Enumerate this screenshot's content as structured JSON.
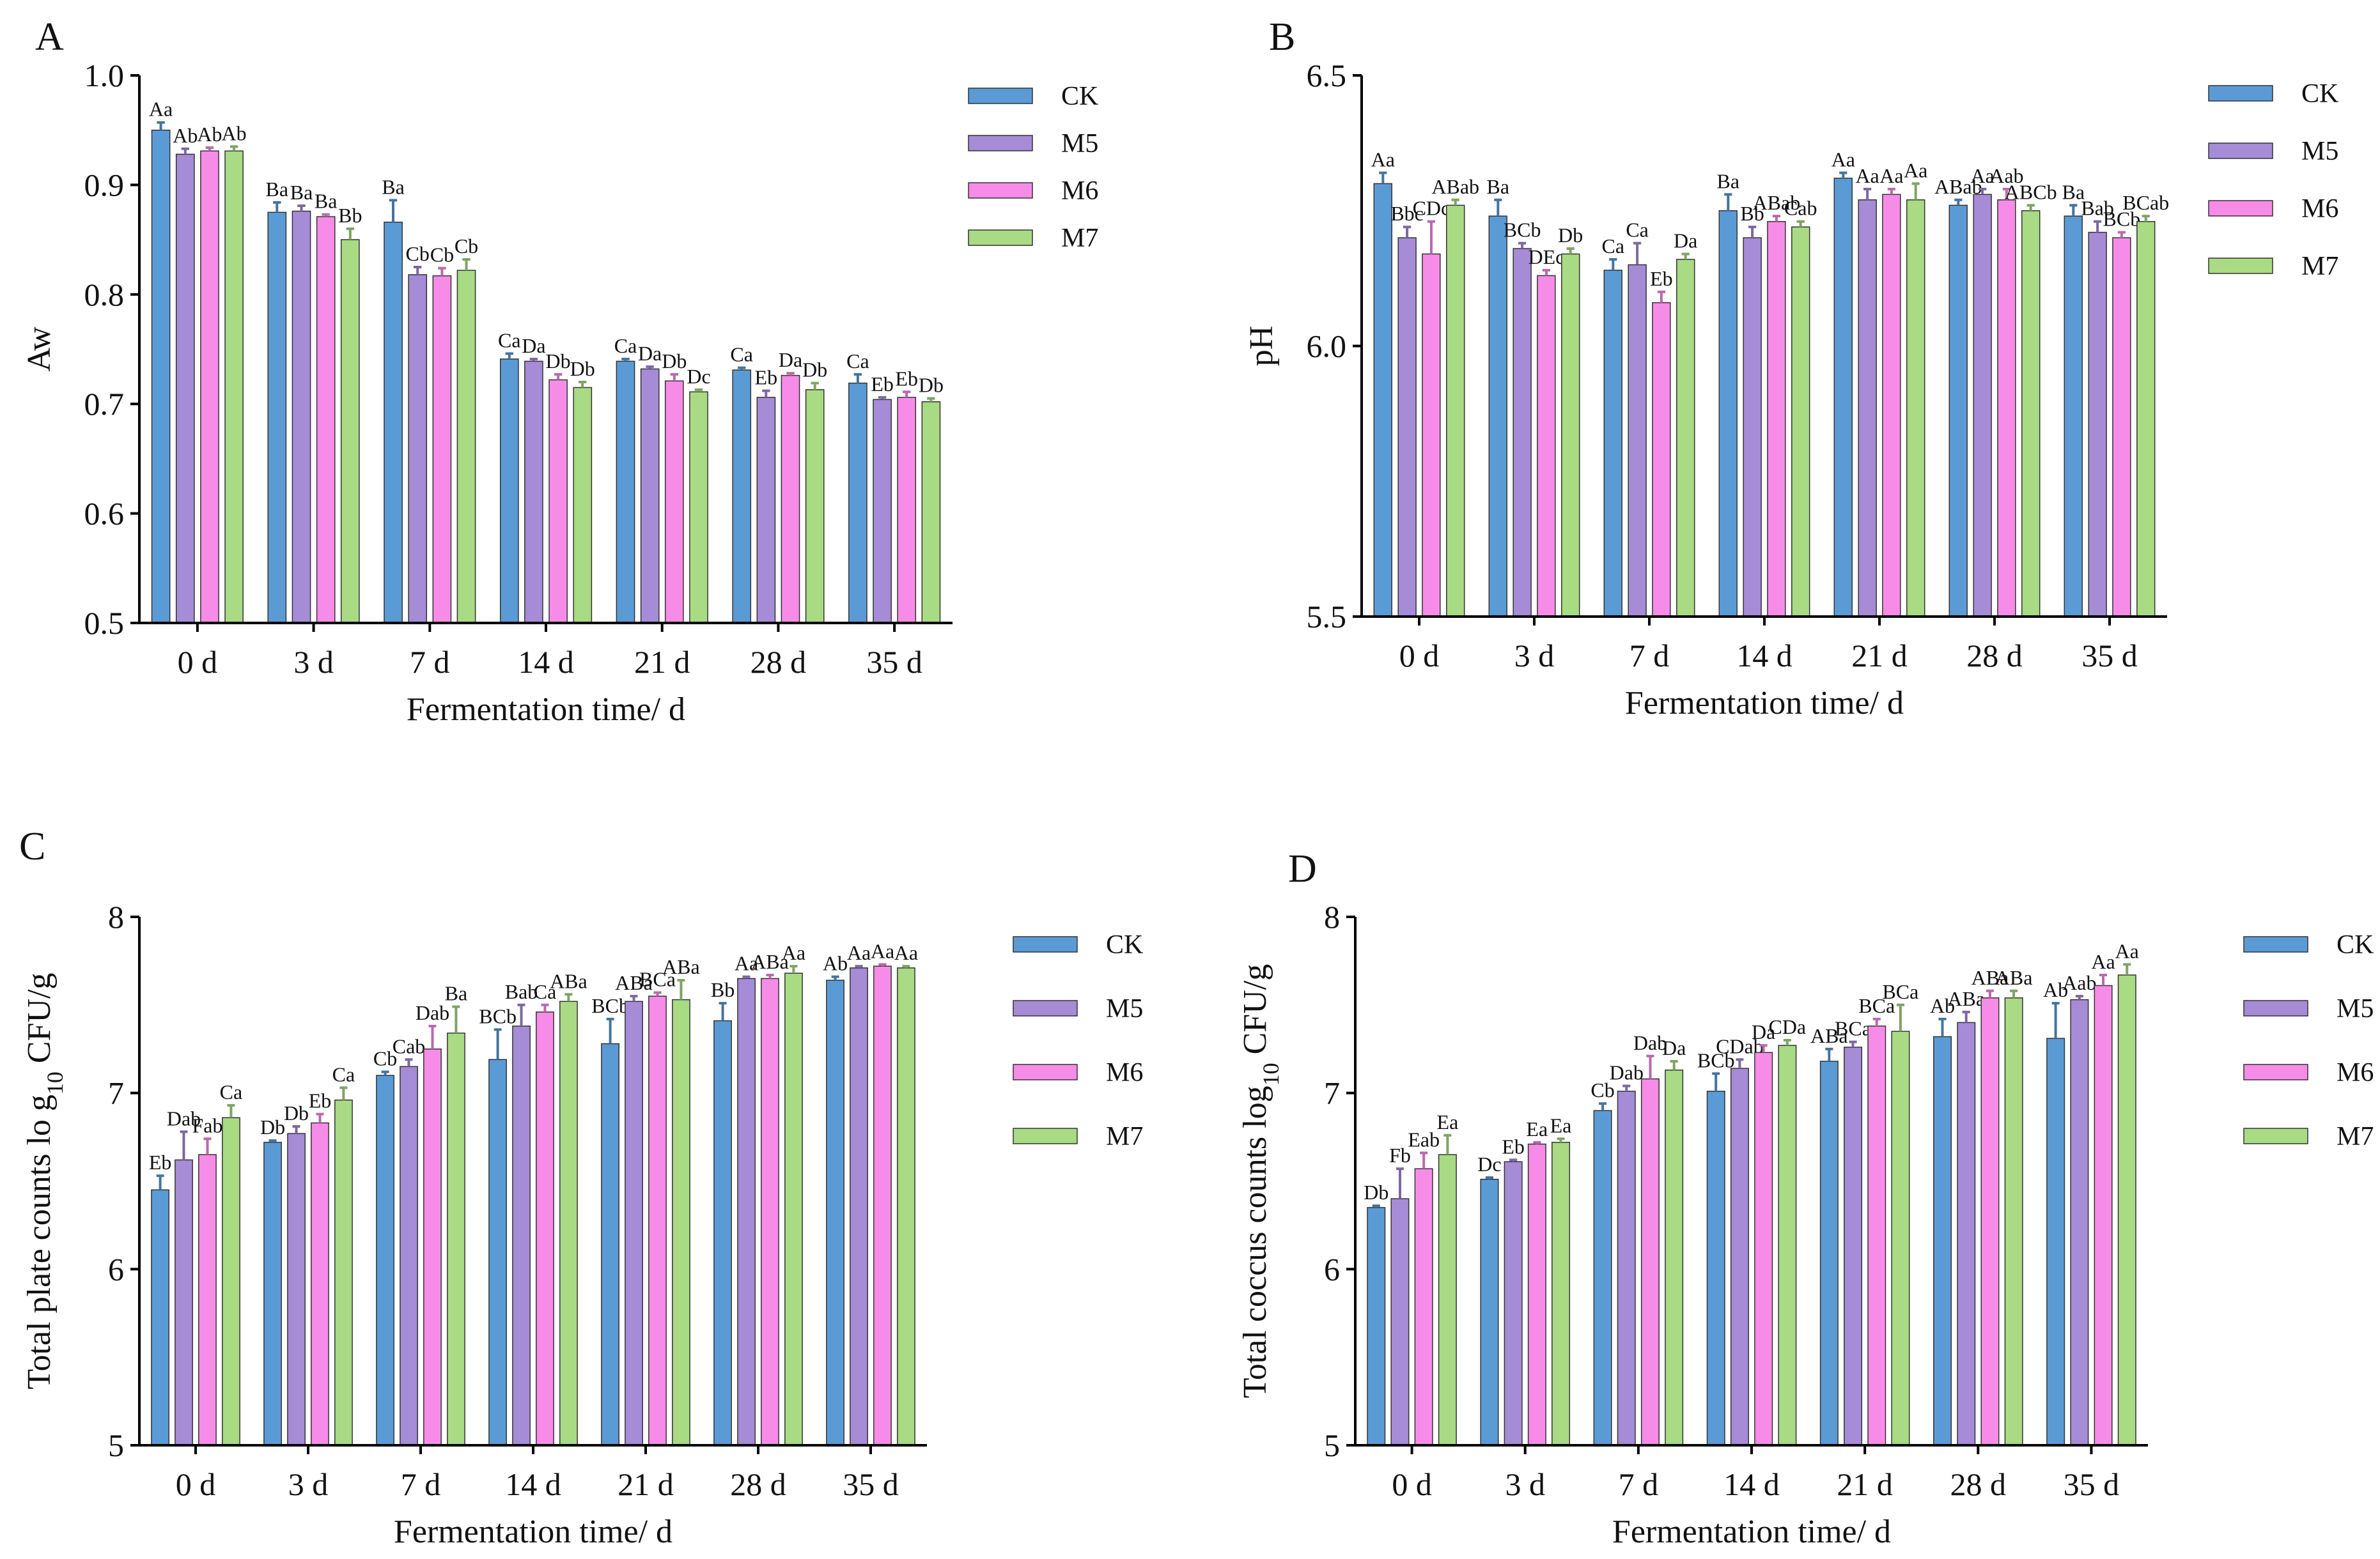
{
  "chart_data": [
    {
      "panel": "A",
      "type": "bar",
      "title": "",
      "xlabel": "Fermentation time/ d",
      "ylabel": "Aw",
      "ylim": [
        0.5,
        1.0
      ],
      "yticks": [
        "0.5",
        "0.6",
        "0.7",
        "0.8",
        "0.9",
        "1.0"
      ],
      "categories": [
        "0 d",
        "3 d",
        "7 d",
        "14 d",
        "21 d",
        "28 d",
        "35 d"
      ],
      "legend_position": "right",
      "series": [
        {
          "name": "CK",
          "color": "#5B9BD5",
          "values": [
            0.95,
            0.875,
            0.866,
            0.741,
            0.739,
            0.731,
            0.719
          ],
          "errors": [
            0.007,
            0.009,
            0.02,
            0.005,
            0.002,
            0.002,
            0.008
          ],
          "labels": [
            "Aa",
            "Ba",
            "Ba",
            "Ca",
            "Ca",
            "Ca",
            "Ca"
          ]
        },
        {
          "name": "M5",
          "color": "#A68BD7",
          "values": [
            0.928,
            0.876,
            0.818,
            0.739,
            0.732,
            0.706,
            0.704
          ],
          "errors": [
            0.005,
            0.005,
            0.007,
            0.002,
            0.002,
            0.006,
            0.002
          ],
          "labels": [
            "Ab",
            "Ba",
            "Cb",
            "Da",
            "Da",
            "Eb",
            "Eb"
          ]
        },
        {
          "name": "M6",
          "color": "#F78CE8",
          "values": [
            0.931,
            0.871,
            0.817,
            0.722,
            0.721,
            0.726,
            0.706
          ],
          "errors": [
            0.003,
            0.002,
            0.007,
            0.005,
            0.006,
            0.002,
            0.005
          ],
          "labels": [
            "Ab",
            "Ba",
            "Cb",
            "Db",
            "Db",
            "Da",
            "Eb"
          ]
        },
        {
          "name": "M7",
          "color": "#A9DA84",
          "values": [
            0.931,
            0.85,
            0.822,
            0.715,
            0.711,
            0.713,
            0.702
          ],
          "errors": [
            0.004,
            0.01,
            0.01,
            0.005,
            0.002,
            0.006,
            0.003
          ],
          "labels": [
            "Ab",
            "Bb",
            "Cb",
            "Db",
            "Dc",
            "Db",
            "Db"
          ]
        }
      ]
    },
    {
      "panel": "B",
      "type": "bar",
      "title": "",
      "xlabel": "Fermentation time/ d",
      "ylabel": "pH",
      "ylim": [
        5.5,
        6.5
      ],
      "yticks": [
        "5.5",
        "6.0",
        "6.5"
      ],
      "categories": [
        "0 d",
        "3 d",
        "7 d",
        "14 d",
        "21 d",
        "28 d",
        "35 d"
      ],
      "legend_position": "right",
      "series": [
        {
          "name": "CK",
          "color": "#5B9BD5",
          "values": [
            6.3,
            6.24,
            6.14,
            6.25,
            6.31,
            6.26,
            6.24
          ],
          "errors": [
            0.02,
            0.03,
            0.02,
            0.03,
            0.01,
            0.01,
            0.02
          ],
          "labels": [
            "Aa",
            "Ba",
            "Ca",
            "Ba",
            "Aa",
            "ABab",
            "Ba"
          ]
        },
        {
          "name": "M5",
          "color": "#A68BD7",
          "values": [
            6.2,
            6.18,
            6.15,
            6.2,
            6.27,
            6.28,
            6.21
          ],
          "errors": [
            0.02,
            0.01,
            0.04,
            0.02,
            0.02,
            0.01,
            0.02
          ],
          "labels": [
            "Bbc",
            "BCb",
            "Ca",
            "Bb",
            "Aa",
            "Aa",
            "Bab"
          ]
        },
        {
          "name": "M6",
          "color": "#F78CE8",
          "values": [
            6.17,
            6.13,
            6.08,
            6.23,
            6.28,
            6.27,
            6.2
          ],
          "errors": [
            0.06,
            0.01,
            0.02,
            0.01,
            0.01,
            0.02,
            0.01
          ],
          "labels": [
            "CDc",
            "DEc",
            "Eb",
            "ABab",
            "Aa",
            "Aab",
            "BCb"
          ]
        },
        {
          "name": "M7",
          "color": "#A9DA84",
          "values": [
            6.26,
            6.17,
            6.16,
            6.22,
            6.27,
            6.25,
            6.23
          ],
          "errors": [
            0.01,
            0.01,
            0.01,
            0.01,
            0.03,
            0.01,
            0.01
          ],
          "labels": [
            "ABab",
            "Db",
            "Da",
            "Cab",
            "Aa",
            "ABCb",
            "BCab"
          ]
        }
      ]
    },
    {
      "panel": "C",
      "type": "bar",
      "title": "",
      "xlabel": "Fermentation time/ d",
      "ylabel": "Total plate counts lo g10 CFU/g",
      "ylabel_parts": [
        "Total plate counts lo g",
        "10",
        " CFU/g"
      ],
      "ylim": [
        5,
        8
      ],
      "yticks": [
        "5",
        "6",
        "7",
        "8"
      ],
      "categories": [
        "0 d",
        "3 d",
        "7 d",
        "14 d",
        "21 d",
        "28 d",
        "35 d"
      ],
      "legend_position": "right",
      "series": [
        {
          "name": "CK",
          "color": "#5B9BD5",
          "values": [
            6.45,
            6.72,
            7.1,
            7.19,
            7.28,
            7.41,
            7.64
          ],
          "errors": [
            0.08,
            0.01,
            0.02,
            0.17,
            0.14,
            0.1,
            0.02
          ],
          "labels": [
            "Eb",
            "Db",
            "Cb",
            "BCb",
            "BCb",
            "Bb",
            "Ab"
          ]
        },
        {
          "name": "M5",
          "color": "#A68BD7",
          "values": [
            6.62,
            6.77,
            7.15,
            7.38,
            7.52,
            7.65,
            7.71
          ],
          "errors": [
            0.16,
            0.04,
            0.04,
            0.12,
            0.03,
            0.01,
            0.01
          ],
          "labels": [
            "Dab",
            "Db",
            "Cab",
            "Bab",
            "ABa",
            "Aa",
            "Aa"
          ]
        },
        {
          "name": "M6",
          "color": "#F78CE8",
          "values": [
            6.65,
            6.83,
            7.25,
            7.46,
            7.55,
            7.65,
            7.72
          ],
          "errors": [
            0.09,
            0.05,
            0.13,
            0.04,
            0.02,
            0.02,
            0.01
          ],
          "labels": [
            "Fab",
            "Eb",
            "Dab",
            "Ca",
            "BCa",
            "ABa",
            "Aa"
          ]
        },
        {
          "name": "M7",
          "color": "#A9DA84",
          "values": [
            6.86,
            6.96,
            7.34,
            7.52,
            7.53,
            7.68,
            7.71
          ],
          "errors": [
            0.07,
            0.07,
            0.15,
            0.04,
            0.11,
            0.04,
            0.01
          ],
          "labels": [
            "Ca",
            "Ca",
            "Ba",
            "ABa",
            "ABa",
            "Aa",
            "Aa"
          ]
        }
      ]
    },
    {
      "panel": "D",
      "type": "bar",
      "title": "",
      "xlabel": "Fermentation time/ d",
      "ylabel": "Total coccus counts log10 CFU/g",
      "ylabel_parts": [
        "Total coccus counts log",
        "10",
        " CFU/g"
      ],
      "ylim": [
        5,
        8
      ],
      "yticks": [
        "5",
        "6",
        "7",
        "8"
      ],
      "categories": [
        "0 d",
        "3 d",
        "7 d",
        "14 d",
        "21 d",
        "28 d",
        "35 d"
      ],
      "legend_position": "right",
      "series": [
        {
          "name": "CK",
          "color": "#5B9BD5",
          "values": [
            6.35,
            6.51,
            6.9,
            7.01,
            7.18,
            7.32,
            7.31
          ],
          "errors": [
            0.01,
            0.01,
            0.04,
            0.1,
            0.07,
            0.1,
            0.2
          ],
          "labels": [
            "Db",
            "Dc",
            "Cb",
            "BCb",
            "ABa",
            "Ab",
            "Ab"
          ]
        },
        {
          "name": "M5",
          "color": "#A68BD7",
          "values": [
            6.4,
            6.61,
            7.01,
            7.14,
            7.26,
            7.4,
            7.53
          ],
          "errors": [
            0.17,
            0.01,
            0.03,
            0.05,
            0.03,
            0.06,
            0.02
          ],
          "labels": [
            "Fb",
            "Eb",
            "Dab",
            "CDab",
            "BCa",
            "ABa",
            "Aab"
          ]
        },
        {
          "name": "M6",
          "color": "#F78CE8",
          "values": [
            6.57,
            6.71,
            7.08,
            7.23,
            7.38,
            7.54,
            7.61
          ],
          "errors": [
            0.09,
            0.01,
            0.13,
            0.04,
            0.04,
            0.04,
            0.06
          ],
          "labels": [
            "Eab",
            "Ea",
            "Dab",
            "Da",
            "BCa",
            "ABa",
            "Aa"
          ]
        },
        {
          "name": "M7",
          "color": "#A9DA84",
          "values": [
            6.65,
            6.72,
            7.13,
            7.27,
            7.35,
            7.54,
            7.67
          ],
          "errors": [
            0.11,
            0.02,
            0.05,
            0.03,
            0.15,
            0.04,
            0.06
          ],
          "labels": [
            "Ea",
            "Ea",
            "Da",
            "CDa",
            "BCa",
            "ABa",
            "Aa"
          ]
        }
      ]
    }
  ]
}
